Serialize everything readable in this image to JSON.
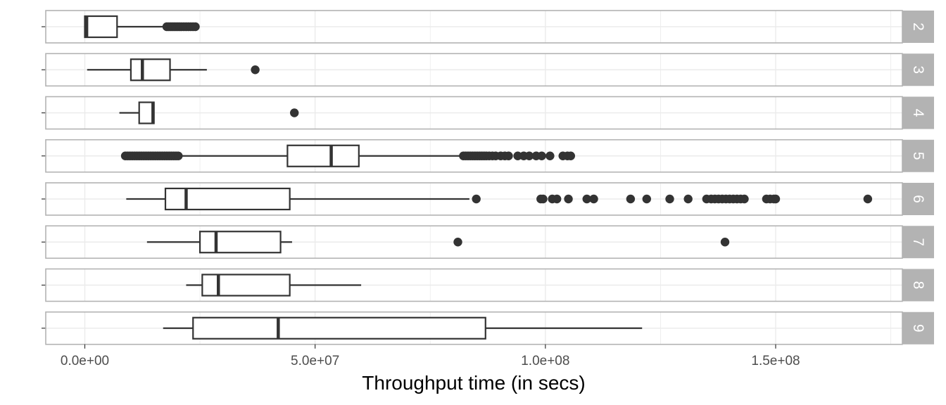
{
  "chart_data": {
    "type": "boxplot",
    "facet_orientation": "horizontal panels stacked vertically, strip labels on right",
    "xlabel": "Throughput time (in secs)",
    "ylabel": "",
    "xlim": [
      -8500000,
      178000000
    ],
    "x_ticks": [
      0,
      50000000,
      100000000,
      150000000
    ],
    "x_tick_labels": [
      "0.0e+00",
      "5.0e+07",
      "1.0e+08",
      "1.5e+08"
    ],
    "grid": true,
    "colors": {
      "strip_bg": "#b3b3b3",
      "strip_text": "#ffffff",
      "panel_border": "#b3b3b3",
      "grid": "#ebebeb",
      "box": "#333333"
    },
    "panels": [
      {
        "label": "2",
        "whisker_low": 0,
        "q1": 0,
        "median": 400000,
        "q3": 7000000,
        "whisker_high": 17500000,
        "outliers": [
          17800000,
          18200000,
          18600000,
          19000000,
          19400000,
          19800000,
          20200000,
          20600000,
          21000000,
          21500000,
          22000000,
          22500000,
          23000000,
          23500000,
          24000000
        ]
      },
      {
        "label": "3",
        "whisker_low": 500000,
        "q1": 10000000,
        "median": 12500000,
        "q3": 18500000,
        "whisker_high": 26500000,
        "outliers": [
          37000000
        ]
      },
      {
        "label": "4",
        "whisker_low": 7500000,
        "q1": 11800000,
        "median": 14800000,
        "q3": 15000000,
        "whisker_high": 15000000,
        "outliers": [
          45500000
        ]
      },
      {
        "label": "5",
        "whisker_low": 8000000,
        "q1": 44000000,
        "median": 53500000,
        "q3": 59500000,
        "whisker_high": 81500000,
        "outliers": [
          8800000,
          9300000,
          9800000,
          10300000,
          10800000,
          11300000,
          11800000,
          12300000,
          12800000,
          13300000,
          13800000,
          14300000,
          14800000,
          15300000,
          15800000,
          16300000,
          16800000,
          17300000,
          17800000,
          18300000,
          18800000,
          19300000,
          19800000,
          20300000,
          82200000,
          82700000,
          83200000,
          83700000,
          84200000,
          84700000,
          85200000,
          85700000,
          86200000,
          86700000,
          87200000,
          87800000,
          88500000,
          89200000,
          90300000,
          91200000,
          92000000,
          94000000,
          95300000,
          96500000,
          98000000,
          99200000,
          101000000,
          103800000,
          104800000,
          105500000
        ]
      },
      {
        "label": "6",
        "whisker_low": 9000000,
        "q1": 17500000,
        "median": 22000000,
        "q3": 44500000,
        "whisker_high": 83500000,
        "outliers": [
          85000000,
          99000000,
          99500000,
          101500000,
          102500000,
          105000000,
          109000000,
          110500000,
          118500000,
          122000000,
          127000000,
          131000000,
          135000000,
          136000000,
          136800000,
          137600000,
          138400000,
          139200000,
          140000000,
          140800000,
          141600000,
          142400000,
          143200000,
          148000000,
          148800000,
          149600000,
          150000000,
          170000000
        ]
      },
      {
        "label": "7",
        "whisker_low": 13500000,
        "q1": 25000000,
        "median": 28500000,
        "q3": 42500000,
        "whisker_high": 45000000,
        "outliers": [
          81000000,
          139000000
        ]
      },
      {
        "label": "8",
        "whisker_low": 22000000,
        "q1": 25500000,
        "median": 29000000,
        "q3": 44500000,
        "whisker_high": 60000000,
        "outliers": []
      },
      {
        "label": "9",
        "whisker_low": 17000000,
        "q1": 23500000,
        "median": 42000000,
        "q3": 87000000,
        "whisker_high": 121000000,
        "outliers": []
      }
    ]
  }
}
